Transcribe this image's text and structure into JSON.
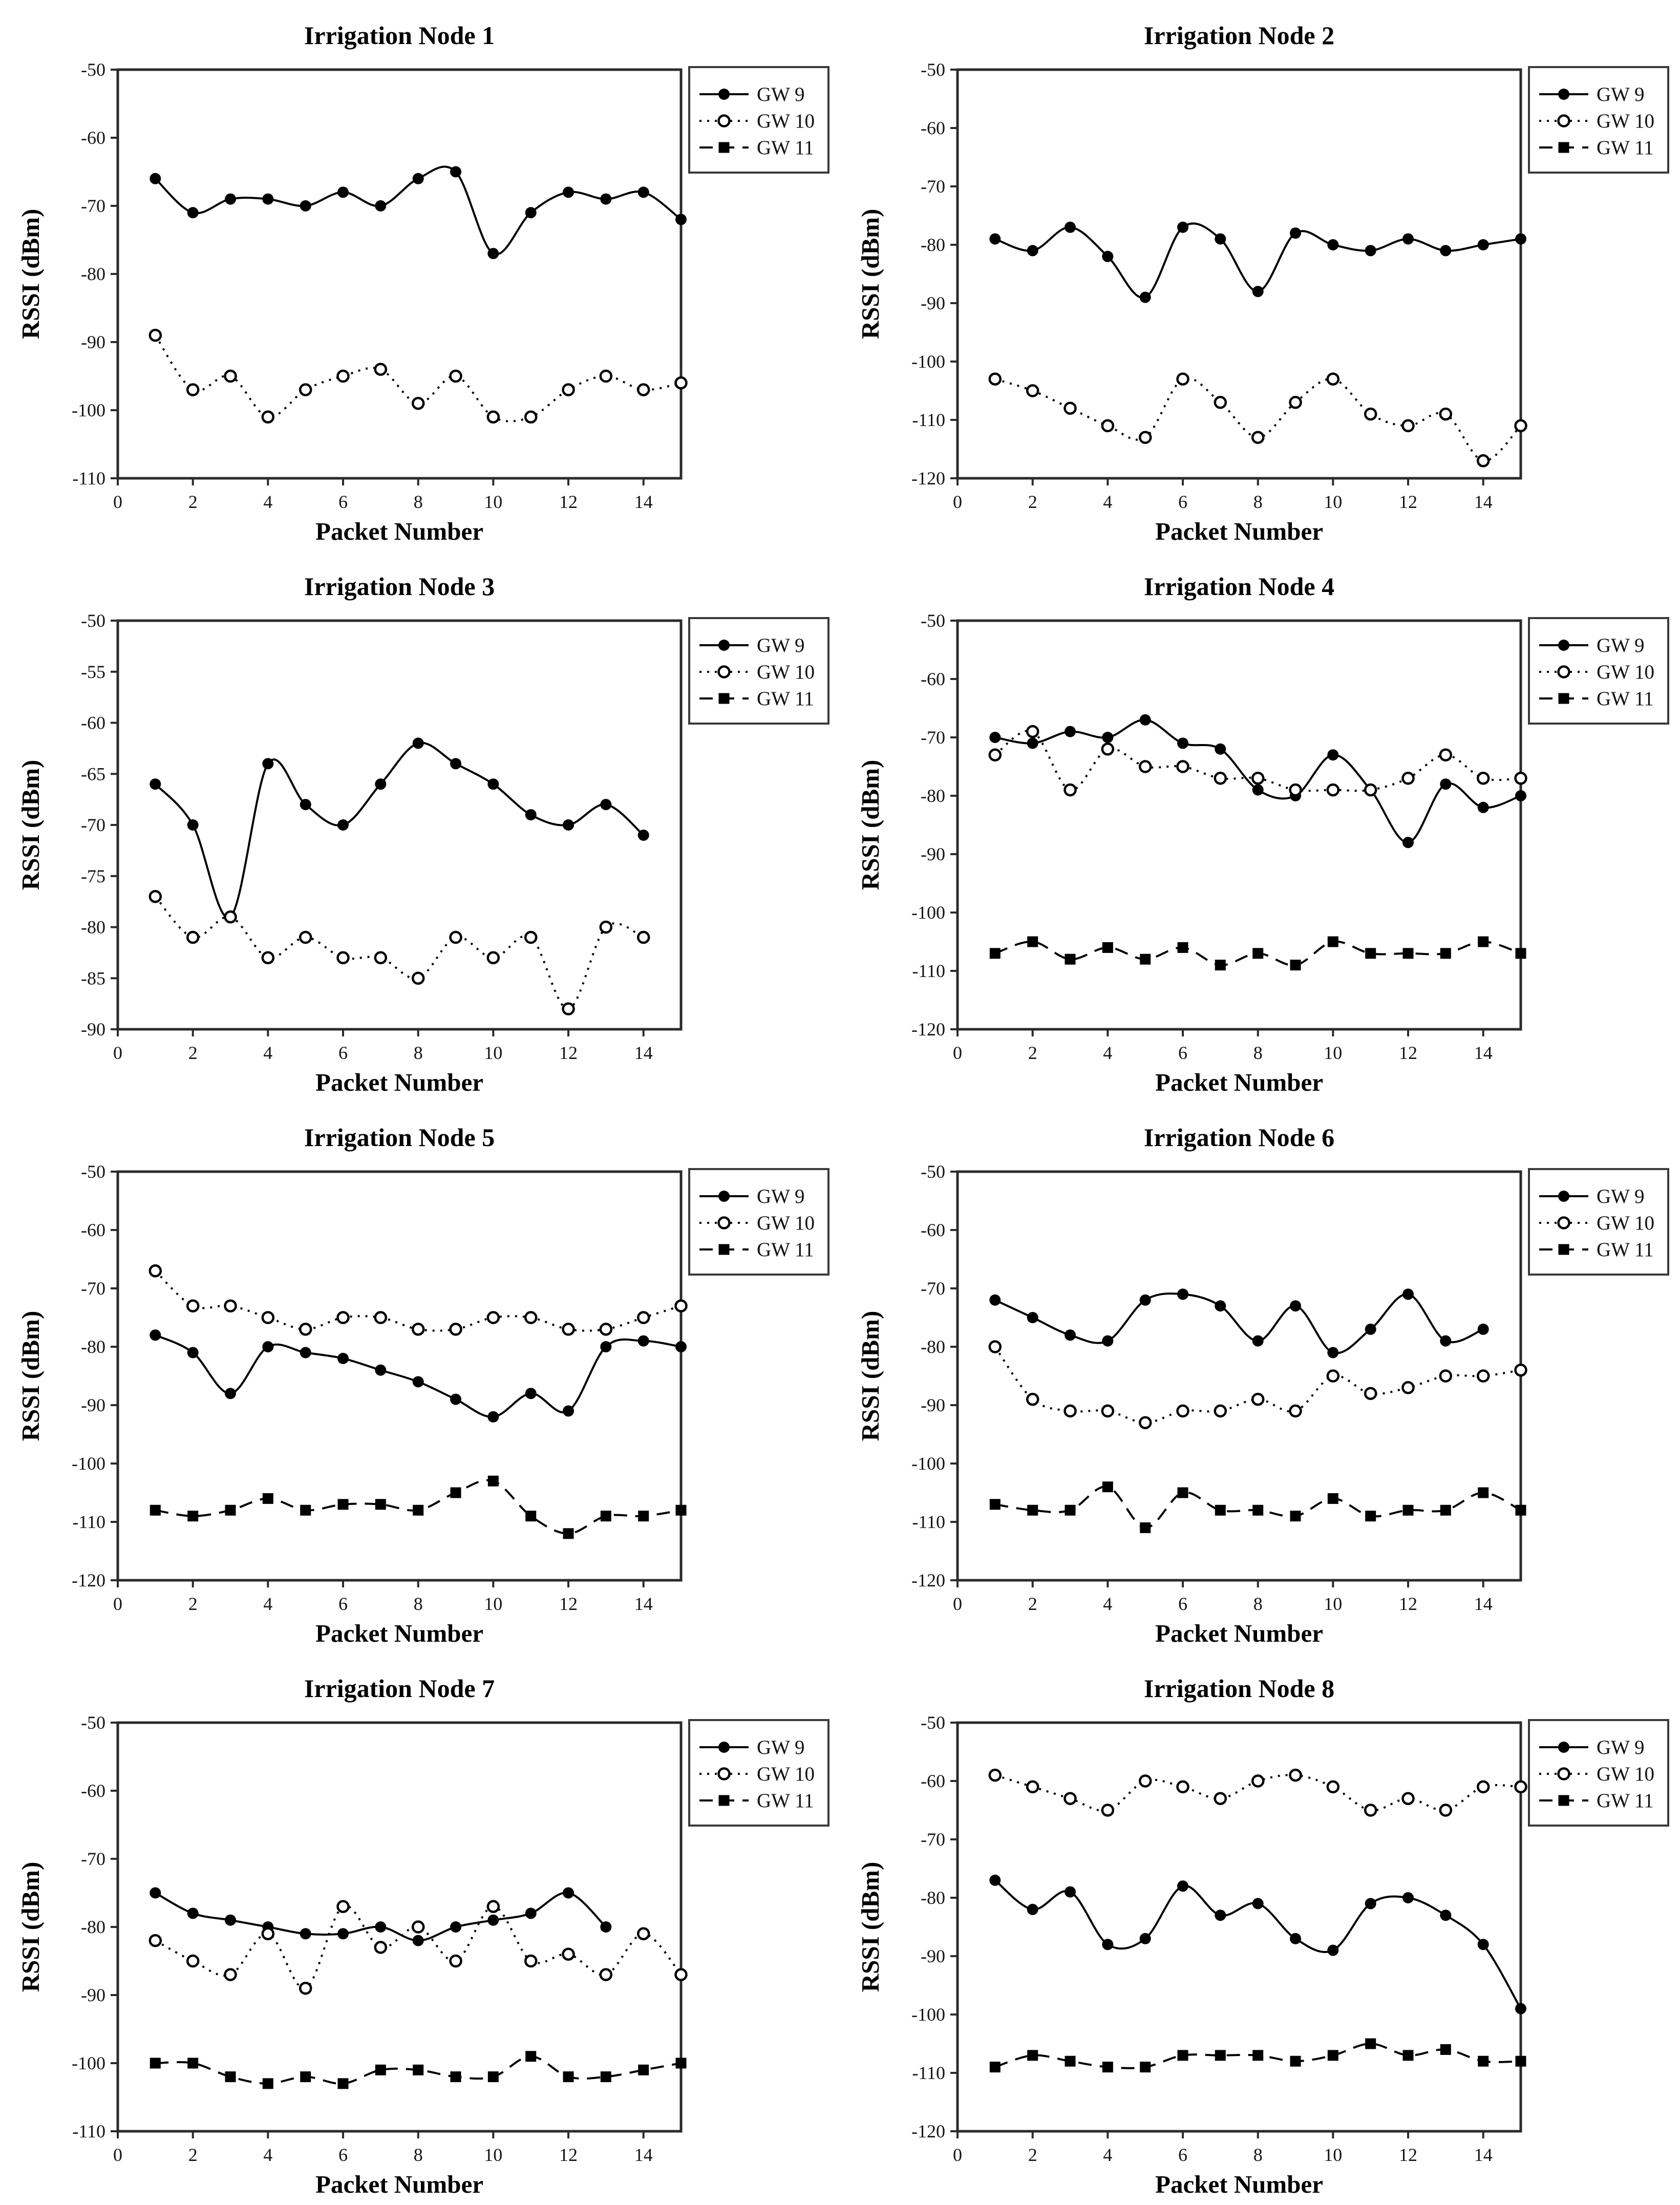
{
  "page": {
    "background": "#ffffff",
    "ink_color": "#000000",
    "axis_color": "#2b2b2b",
    "legend_border_color": "#3a3a3a"
  },
  "series_styles": {
    "GW 9": {
      "line": "solid",
      "marker": "filled-circle"
    },
    "GW 10": {
      "line": "dotted",
      "marker": "open-circle"
    },
    "GW 11": {
      "line": "dashed",
      "marker": "filled-square"
    }
  },
  "chart_data": [
    {
      "type": "line",
      "title": "Irrigation Node 1",
      "xlabel": "Packet Number",
      "ylabel": "RSSI (dBm)",
      "xlim": [
        0,
        15
      ],
      "xticks": [
        0,
        2,
        4,
        6,
        8,
        10,
        12,
        14
      ],
      "ylim": [
        -110,
        -50
      ],
      "ytick_step": 10,
      "legend": [
        "GW 9",
        "GW 10",
        "GW 11"
      ],
      "legend_position": "right-top",
      "grid": false,
      "series": [
        {
          "name": "GW 9",
          "x": [
            1,
            2,
            3,
            4,
            5,
            6,
            7,
            8,
            9,
            10,
            11,
            12,
            13,
            14,
            15
          ],
          "y": [
            -66,
            -71,
            -69,
            -69,
            -70,
            -68,
            -70,
            -66,
            -65,
            -77,
            -71,
            -68,
            -69,
            -68,
            -72
          ]
        },
        {
          "name": "GW 10",
          "x": [
            1,
            2,
            3,
            4,
            5,
            6,
            7,
            8,
            9,
            10,
            11,
            12,
            13,
            14,
            15
          ],
          "y": [
            -89,
            -97,
            -95,
            -101,
            -97,
            -95,
            -94,
            -99,
            -95,
            -101,
            -101,
            -97,
            -95,
            -97,
            -96
          ]
        }
      ]
    },
    {
      "type": "line",
      "title": "Irrigation Node 2",
      "xlabel": "Packet Number",
      "ylabel": "RSSI (dBm)",
      "xlim": [
        0,
        15
      ],
      "xticks": [
        0,
        2,
        4,
        6,
        8,
        10,
        12,
        14
      ],
      "ylim": [
        -120,
        -50
      ],
      "ytick_step": 10,
      "legend": [
        "GW 9",
        "GW 10",
        "GW 11"
      ],
      "legend_position": "right-top",
      "grid": false,
      "series": [
        {
          "name": "GW 9",
          "x": [
            1,
            2,
            3,
            4,
            5,
            6,
            7,
            8,
            9,
            10,
            11,
            12,
            13,
            14,
            15
          ],
          "y": [
            -79,
            -81,
            -77,
            -82,
            -89,
            -77,
            -79,
            -88,
            -78,
            -80,
            -81,
            -79,
            -81,
            -80,
            -79
          ]
        },
        {
          "name": "GW 10",
          "x": [
            1,
            2,
            3,
            4,
            5,
            6,
            7,
            8,
            9,
            10,
            11,
            12,
            13,
            14,
            15
          ],
          "y": [
            -103,
            -105,
            -108,
            -111,
            -113,
            -103,
            -107,
            -113,
            -107,
            -103,
            -109,
            -111,
            -109,
            -117,
            -111
          ]
        }
      ]
    },
    {
      "type": "line",
      "title": "Irrigation Node 3",
      "xlabel": "Packet Number",
      "ylabel": "RSSI (dBm)",
      "xlim": [
        0,
        15
      ],
      "xticks": [
        0,
        2,
        4,
        6,
        8,
        10,
        12,
        14
      ],
      "ylim": [
        -90,
        -50
      ],
      "ytick_step": 5,
      "legend": [
        "GW 9",
        "GW 10",
        "GW 11"
      ],
      "legend_position": "right-top",
      "grid": false,
      "series": [
        {
          "name": "GW 9",
          "x": [
            1,
            2,
            3,
            4,
            5,
            6,
            7,
            8,
            9,
            10,
            11,
            12,
            13,
            14
          ],
          "y": [
            -66,
            -70,
            -79,
            -64,
            -68,
            -70,
            -66,
            -62,
            -64,
            -66,
            -69,
            -70,
            -68,
            -71
          ]
        },
        {
          "name": "GW 10",
          "x": [
            1,
            2,
            3,
            4,
            5,
            6,
            7,
            8,
            9,
            10,
            11,
            12,
            13,
            14
          ],
          "y": [
            -77,
            -81,
            -79,
            -83,
            -81,
            -83,
            -83,
            -85,
            -81,
            -83,
            -81,
            -88,
            -80,
            -81
          ]
        }
      ]
    },
    {
      "type": "line",
      "title": "Irrigation Node 4",
      "xlabel": "Packet Number",
      "ylabel": "RSSI (dBm)",
      "xlim": [
        0,
        15
      ],
      "xticks": [
        0,
        2,
        4,
        6,
        8,
        10,
        12,
        14
      ],
      "ylim": [
        -120,
        -50
      ],
      "ytick_step": 10,
      "legend": [
        "GW 9",
        "GW 10",
        "GW 11"
      ],
      "legend_position": "right-top",
      "grid": false,
      "series": [
        {
          "name": "GW 9",
          "x": [
            1,
            2,
            3,
            4,
            5,
            6,
            7,
            8,
            9,
            10,
            11,
            12,
            13,
            14,
            15
          ],
          "y": [
            -70,
            -71,
            -69,
            -70,
            -67,
            -71,
            -72,
            -79,
            -80,
            -73,
            -79,
            -88,
            -78,
            -82,
            -80
          ]
        },
        {
          "name": "GW 10",
          "x": [
            1,
            2,
            3,
            4,
            5,
            6,
            7,
            8,
            9,
            10,
            11,
            12,
            13,
            14,
            15
          ],
          "y": [
            -73,
            -69,
            -79,
            -72,
            -75,
            -75,
            -77,
            -77,
            -79,
            -79,
            -79,
            -77,
            -73,
            -77,
            -77
          ]
        },
        {
          "name": "GW 11",
          "x": [
            1,
            2,
            3,
            4,
            5,
            6,
            7,
            8,
            9,
            10,
            11,
            12,
            13,
            14,
            15
          ],
          "y": [
            -107,
            -105,
            -108,
            -106,
            -108,
            -106,
            -109,
            -107,
            -109,
            -105,
            -107,
            -107,
            -107,
            -105,
            -107
          ]
        }
      ]
    },
    {
      "type": "line",
      "title": "Irrigation Node 5",
      "xlabel": "Packet Number",
      "ylabel": "RSSI (dBm)",
      "xlim": [
        0,
        15
      ],
      "xticks": [
        0,
        2,
        4,
        6,
        8,
        10,
        12,
        14
      ],
      "ylim": [
        -120,
        -50
      ],
      "ytick_step": 10,
      "legend": [
        "GW 9",
        "GW 10",
        "GW 11"
      ],
      "legend_position": "right-top",
      "grid": false,
      "series": [
        {
          "name": "GW 9",
          "x": [
            1,
            2,
            3,
            4,
            5,
            6,
            7,
            8,
            9,
            10,
            11,
            12,
            13,
            14,
            15
          ],
          "y": [
            -78,
            -81,
            -88,
            -80,
            -81,
            -82,
            -84,
            -86,
            -89,
            -92,
            -88,
            -91,
            -80,
            -79,
            -80
          ]
        },
        {
          "name": "GW 10",
          "x": [
            1,
            2,
            3,
            4,
            5,
            6,
            7,
            8,
            9,
            10,
            11,
            12,
            13,
            14,
            15
          ],
          "y": [
            -67,
            -73,
            -73,
            -75,
            -77,
            -75,
            -75,
            -77,
            -77,
            -75,
            -75,
            -77,
            -77,
            -75,
            -73
          ]
        },
        {
          "name": "GW 11",
          "x": [
            1,
            2,
            3,
            4,
            5,
            6,
            7,
            8,
            9,
            10,
            11,
            12,
            13,
            14,
            15
          ],
          "y": [
            -108,
            -109,
            -108,
            -106,
            -108,
            -107,
            -107,
            -108,
            -105,
            -103,
            -109,
            -112,
            -109,
            -109,
            -108
          ]
        }
      ]
    },
    {
      "type": "line",
      "title": "Irrigation Node 6",
      "xlabel": "Packet Number",
      "ylabel": "RSSI (dBm)",
      "xlim": [
        0,
        15
      ],
      "xticks": [
        0,
        2,
        4,
        6,
        8,
        10,
        12,
        14
      ],
      "ylim": [
        -120,
        -50
      ],
      "ytick_step": 10,
      "legend": [
        "GW 9",
        "GW 10",
        "GW 11"
      ],
      "legend_position": "right-top",
      "grid": false,
      "series": [
        {
          "name": "GW 9",
          "x": [
            1,
            2,
            3,
            4,
            5,
            6,
            7,
            8,
            9,
            10,
            11,
            12,
            13,
            14
          ],
          "y": [
            -72,
            -75,
            -78,
            -79,
            -72,
            -71,
            -73,
            -79,
            -73,
            -81,
            -77,
            -71,
            -79,
            -77
          ]
        },
        {
          "name": "GW 10",
          "x": [
            1,
            2,
            3,
            4,
            5,
            6,
            7,
            8,
            9,
            10,
            11,
            12,
            13,
            14,
            15
          ],
          "y": [
            -80,
            -89,
            -91,
            -91,
            -93,
            -91,
            -91,
            -89,
            -91,
            -85,
            -88,
            -87,
            -85,
            -85,
            -84
          ]
        },
        {
          "name": "GW 11",
          "x": [
            1,
            2,
            3,
            4,
            5,
            6,
            7,
            8,
            9,
            10,
            11,
            12,
            13,
            14,
            15
          ],
          "y": [
            -107,
            -108,
            -108,
            -104,
            -111,
            -105,
            -108,
            -108,
            -109,
            -106,
            -109,
            -108,
            -108,
            -105,
            -108
          ]
        }
      ]
    },
    {
      "type": "line",
      "title": "Irrigation Node 7",
      "xlabel": "Packet Number",
      "ylabel": "RSSI (dBm)",
      "xlim": [
        0,
        15
      ],
      "xticks": [
        0,
        2,
        4,
        6,
        8,
        10,
        12,
        14
      ],
      "ylim": [
        -110,
        -50
      ],
      "ytick_step": 10,
      "legend": [
        "GW 9",
        "GW 10",
        "GW 11"
      ],
      "legend_position": "right-top",
      "grid": false,
      "series": [
        {
          "name": "GW 9",
          "x": [
            1,
            2,
            3,
            4,
            5,
            6,
            7,
            8,
            9,
            10,
            11,
            12,
            13
          ],
          "y": [
            -75,
            -78,
            -79,
            -80,
            -81,
            -81,
            -80,
            -82,
            -80,
            -79,
            -78,
            -75,
            -80
          ]
        },
        {
          "name": "GW 10",
          "x": [
            1,
            2,
            3,
            4,
            5,
            6,
            7,
            8,
            9,
            10,
            11,
            12,
            13,
            14,
            15
          ],
          "y": [
            -82,
            -85,
            -87,
            -81,
            -89,
            -77,
            -83,
            -80,
            -85,
            -77,
            -85,
            -84,
            -87,
            -81,
            -87
          ]
        },
        {
          "name": "GW 11",
          "x": [
            1,
            2,
            3,
            4,
            5,
            6,
            7,
            8,
            9,
            10,
            11,
            12,
            13,
            14,
            15
          ],
          "y": [
            -100,
            -100,
            -102,
            -103,
            -102,
            -103,
            -101,
            -101,
            -102,
            -102,
            -99,
            -102,
            -102,
            -101,
            -100
          ]
        }
      ]
    },
    {
      "type": "line",
      "title": "Irrigation Node 8",
      "xlabel": "Packet Number",
      "ylabel": "RSSI (dBm)",
      "xlim": [
        0,
        15
      ],
      "xticks": [
        0,
        2,
        4,
        6,
        8,
        10,
        12,
        14
      ],
      "ylim": [
        -120,
        -50
      ],
      "ytick_step": 10,
      "legend": [
        "GW 9",
        "GW 10",
        "GW 11"
      ],
      "legend_position": "right-top",
      "grid": false,
      "series": [
        {
          "name": "GW 9",
          "x": [
            1,
            2,
            3,
            4,
            5,
            6,
            7,
            8,
            9,
            10,
            11,
            12,
            13,
            14,
            15
          ],
          "y": [
            -77,
            -82,
            -79,
            -88,
            -87,
            -78,
            -83,
            -81,
            -87,
            -89,
            -81,
            -80,
            -83,
            -88,
            -99
          ]
        },
        {
          "name": "GW 10",
          "x": [
            1,
            2,
            3,
            4,
            5,
            6,
            7,
            8,
            9,
            10,
            11,
            12,
            13,
            14,
            15
          ],
          "y": [
            -59,
            -61,
            -63,
            -65,
            -60,
            -61,
            -63,
            -60,
            -59,
            -61,
            -65,
            -63,
            -65,
            -61,
            -61
          ]
        },
        {
          "name": "GW 11",
          "x": [
            1,
            2,
            3,
            4,
            5,
            6,
            7,
            8,
            9,
            10,
            11,
            12,
            13,
            14,
            15
          ],
          "y": [
            -109,
            -107,
            -108,
            -109,
            -109,
            -107,
            -107,
            -107,
            -108,
            -107,
            -105,
            -107,
            -106,
            -108,
            -108
          ]
        }
      ]
    }
  ]
}
